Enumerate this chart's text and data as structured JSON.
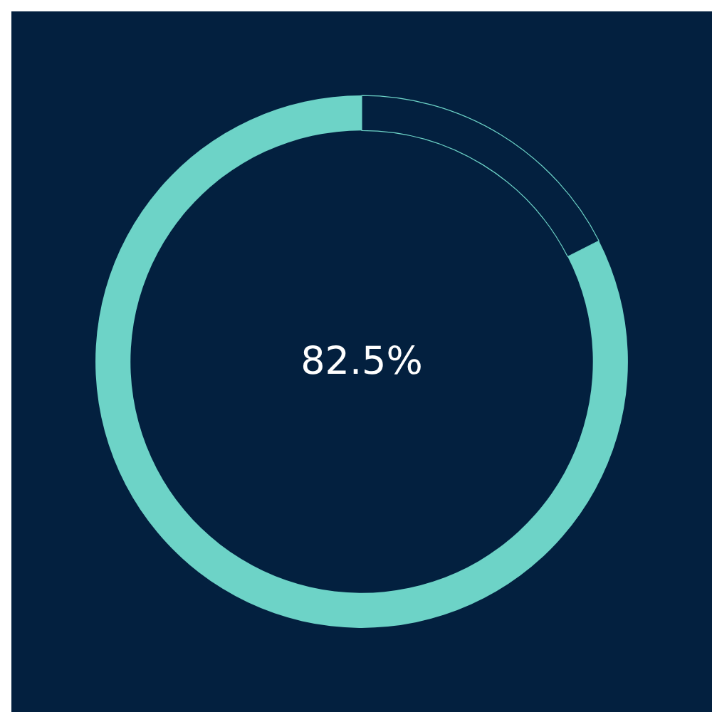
{
  "chart_data": {
    "type": "donut",
    "categories": [
      null,
      null
    ],
    "values": [
      82.5,
      17.5
    ],
    "colors": [
      "#6dd3c7",
      "#03203f"
    ],
    "value_labels": [
      "82.5%",
      null
    ]
  }
}
